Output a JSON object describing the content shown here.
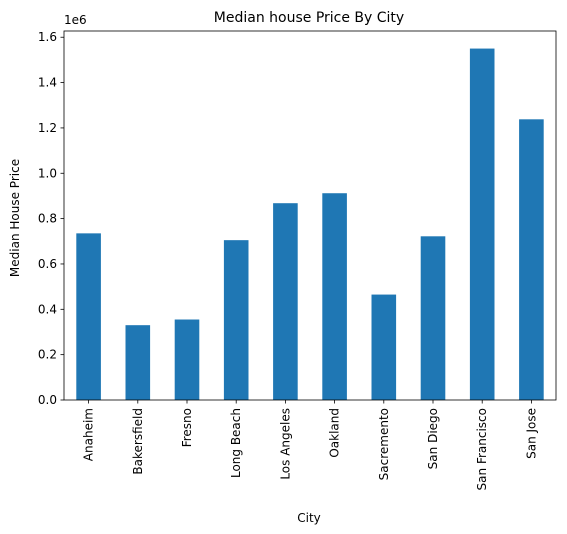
{
  "chart_data": {
    "type": "bar",
    "title": "Median house Price By City",
    "xlabel": "City",
    "ylabel": "Median House Price",
    "y_offset_label": "1e6",
    "categories": [
      "Anaheim",
      "Bakersfield",
      "Fresno",
      "Long Beach",
      "Los Angeles",
      "Oakland",
      "Sacremento",
      "San Diego",
      "San Francisco",
      "San Jose"
    ],
    "values": [
      735000,
      330000,
      355000,
      705000,
      868000,
      912000,
      465000,
      722000,
      1550000,
      1238000
    ],
    "ylim": [
      0,
      1627500
    ],
    "yticks": [
      0,
      200000,
      400000,
      600000,
      800000,
      1000000,
      1200000,
      1400000,
      1600000
    ],
    "ytick_labels": [
      "0.0",
      "0.2",
      "0.4",
      "0.6",
      "0.8",
      "1.0",
      "1.2",
      "1.4",
      "1.6"
    ],
    "bar_color": "#1f77b4",
    "grid": false,
    "legend": "none"
  }
}
